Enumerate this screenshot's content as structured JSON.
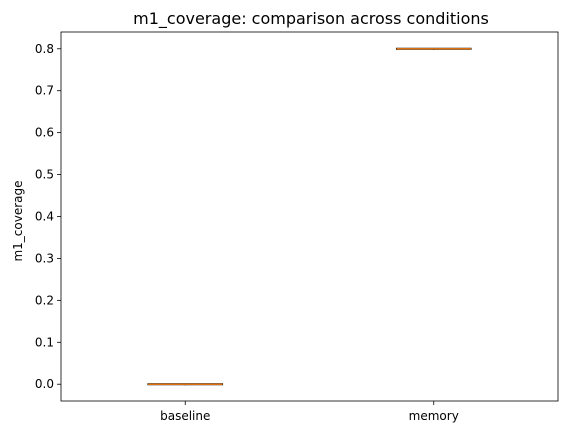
{
  "chart_data": {
    "type": "box",
    "title": "m1_coverage: comparison across conditions",
    "xlabel": "",
    "ylabel": "m1_coverage",
    "categories": [
      "baseline",
      "memory"
    ],
    "boxes": [
      {
        "category": "baseline",
        "min": 0.0,
        "q1": 0.0,
        "median": 0.0,
        "q3": 0.0,
        "max": 0.0
      },
      {
        "category": "memory",
        "min": 0.8,
        "q1": 0.8,
        "median": 0.8,
        "q3": 0.8,
        "max": 0.8
      }
    ],
    "ylim": [
      -0.04,
      0.84
    ],
    "yticks": [
      "0.0",
      "0.1",
      "0.2",
      "0.3",
      "0.4",
      "0.5",
      "0.6",
      "0.7",
      "0.8"
    ],
    "grid": false,
    "colors": {
      "box_edge": "#000000",
      "median": "#ff7f0e"
    }
  }
}
